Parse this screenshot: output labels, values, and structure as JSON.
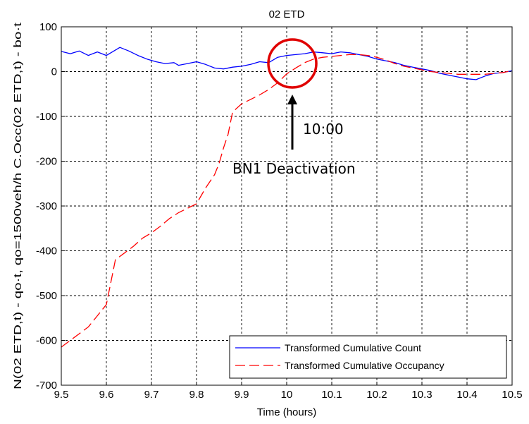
{
  "chart_data": {
    "type": "line",
    "title": "02 ETD",
    "xlabel": "Time (hours)",
    "ylabel": "N(02 ETD,t) - qo·t,  qo=1500veh/h   C.Occ(02 ETD,t) - bo·t",
    "xlim": [
      9.5,
      10.5
    ],
    "ylim": [
      -700,
      100
    ],
    "xticks": [
      "9.5",
      "9.6",
      "9.7",
      "9.8",
      "9.9",
      "10",
      "10.1",
      "10.2",
      "10.3",
      "10.4",
      "10.5"
    ],
    "yticks": [
      "100",
      "0",
      "-100",
      "-200",
      "-300",
      "-400",
      "-500",
      "-600",
      "-700"
    ],
    "grid": true,
    "legend_position": "bottom-right",
    "series": [
      {
        "name": "Transformed Cumulative Count",
        "color": "#0000ff",
        "style": "solid",
        "x": [
          9.5,
          9.52,
          9.54,
          9.56,
          9.58,
          9.6,
          9.61,
          9.63,
          9.65,
          9.67,
          9.69,
          9.71,
          9.73,
          9.75,
          9.76,
          9.78,
          9.8,
          9.82,
          9.84,
          9.86,
          9.88,
          9.9,
          9.92,
          9.94,
          9.96,
          9.98,
          10.0,
          10.02,
          10.04,
          10.06,
          10.08,
          10.1,
          10.12,
          10.14,
          10.16,
          10.18,
          10.2,
          10.22,
          10.24,
          10.26,
          10.28,
          10.3,
          10.32,
          10.34,
          10.36,
          10.38,
          10.4,
          10.42,
          10.44,
          10.46,
          10.48,
          10.5
        ],
        "y": [
          45,
          40,
          46,
          36,
          44,
          36,
          42,
          54,
          46,
          36,
          28,
          22,
          18,
          20,
          14,
          18,
          22,
          16,
          8,
          6,
          10,
          12,
          16,
          22,
          20,
          32,
          36,
          38,
          40,
          44,
          42,
          40,
          44,
          42,
          38,
          34,
          28,
          24,
          20,
          14,
          10,
          6,
          2,
          -4,
          -8,
          -12,
          -16,
          -18,
          -10,
          -4,
          -2,
          2
        ]
      },
      {
        "name": "Transformed Cumulative Occupancy",
        "color": "#ff0000",
        "style": "dashed",
        "x": [
          9.5,
          9.52,
          9.54,
          9.56,
          9.58,
          9.6,
          9.61,
          9.62,
          9.64,
          9.66,
          9.68,
          9.7,
          9.72,
          9.74,
          9.76,
          9.78,
          9.8,
          9.82,
          9.84,
          9.85,
          9.86,
          9.87,
          9.88,
          9.9,
          9.92,
          9.94,
          9.96,
          9.98,
          10.0,
          10.02,
          10.04,
          10.06,
          10.08,
          10.1,
          10.12,
          10.14,
          10.16,
          10.18,
          10.2,
          10.22,
          10.24,
          10.26,
          10.28,
          10.3,
          10.32,
          10.34,
          10.36,
          10.38,
          10.4,
          10.42,
          10.44,
          10.46,
          10.48,
          10.5
        ],
        "y": [
          -615,
          -600,
          -585,
          -570,
          -545,
          -520,
          -470,
          -420,
          -405,
          -390,
          -372,
          -360,
          -345,
          -328,
          -315,
          -305,
          -295,
          -260,
          -230,
          -205,
          -170,
          -140,
          -90,
          -72,
          -62,
          -52,
          -40,
          -25,
          -5,
          8,
          20,
          28,
          32,
          34,
          36,
          38,
          38,
          36,
          32,
          26,
          18,
          12,
          8,
          4,
          0,
          -2,
          -4,
          -6,
          -6,
          -6,
          -6,
          -4,
          -2,
          2
        ]
      }
    ],
    "annotations": {
      "time_label": "10:00",
      "event_label": "BN1 Deactivation",
      "circle_color": "#e00000",
      "arrow_color": "#000000"
    }
  }
}
